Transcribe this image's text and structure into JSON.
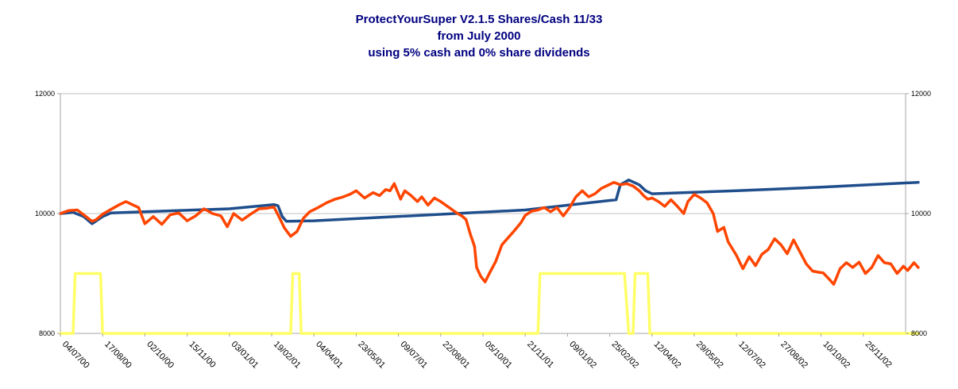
{
  "chart_data": {
    "type": "line",
    "title_lines": [
      "ProtectYourSuper V2.1.5 Shares/Cash 11/33",
      "from July 2000",
      "using 5% cash and 0% share dividends"
    ],
    "ylim": [
      8000,
      12000
    ],
    "y_ticks": [
      "8000",
      "10000",
      "12000"
    ],
    "y_ticks_right": [
      "8000",
      "10000",
      "12000"
    ],
    "grid": "horizontal",
    "x_tick_labels": [
      "04/07/00",
      "17/08/00",
      "02/10/00",
      "15/11/00",
      "03/01/01",
      "19/02/01",
      "04/04/01",
      "23/05/01",
      "09/07/01",
      "22/08/01",
      "05/10/01",
      "21/11/01",
      "09/01/02",
      "25/02/02",
      "12/04/02",
      "29/05/02",
      "12/07/02",
      "27/08/02",
      "10/10/02",
      "25/11/02"
    ],
    "series": [
      {
        "color": "#1f4e8c",
        "points": [
          [
            0,
            10000
          ],
          [
            0.3,
            10020
          ],
          [
            0.55,
            9950
          ],
          [
            0.75,
            9830
          ],
          [
            1.0,
            9950
          ],
          [
            1.2,
            10010
          ],
          [
            4.0,
            10080
          ],
          [
            5.05,
            10150
          ],
          [
            5.15,
            10130
          ],
          [
            5.25,
            9950
          ],
          [
            5.35,
            9870
          ],
          [
            6.0,
            9880
          ],
          [
            11.0,
            10060
          ],
          [
            13.15,
            10230
          ],
          [
            13.25,
            10480
          ],
          [
            13.45,
            10560
          ],
          [
            13.7,
            10480
          ],
          [
            13.85,
            10380
          ],
          [
            14.0,
            10330
          ],
          [
            16.0,
            10380
          ],
          [
            18.0,
            10440
          ],
          [
            20.3,
            10520
          ]
        ]
      },
      {
        "color": "#ff4500",
        "points": [
          [
            0,
            10000
          ],
          [
            0.2,
            10050
          ],
          [
            0.4,
            10060
          ],
          [
            0.55,
            9980
          ],
          [
            0.75,
            9870
          ],
          [
            0.85,
            9900
          ],
          [
            1.0,
            9990
          ],
          [
            1.2,
            10070
          ],
          [
            1.4,
            10150
          ],
          [
            1.55,
            10200
          ],
          [
            1.7,
            10150
          ],
          [
            1.85,
            10100
          ],
          [
            2.0,
            9830
          ],
          [
            2.2,
            9950
          ],
          [
            2.4,
            9820
          ],
          [
            2.6,
            9980
          ],
          [
            2.8,
            10010
          ],
          [
            3.0,
            9880
          ],
          [
            3.2,
            9960
          ],
          [
            3.4,
            10080
          ],
          [
            3.6,
            10000
          ],
          [
            3.8,
            9960
          ],
          [
            3.95,
            9780
          ],
          [
            4.1,
            10000
          ],
          [
            4.3,
            9890
          ],
          [
            4.5,
            9990
          ],
          [
            4.7,
            10080
          ],
          [
            4.9,
            10090
          ],
          [
            5.05,
            10110
          ],
          [
            5.15,
            9980
          ],
          [
            5.3,
            9760
          ],
          [
            5.45,
            9620
          ],
          [
            5.6,
            9700
          ],
          [
            5.75,
            9920
          ],
          [
            5.9,
            10030
          ],
          [
            6.1,
            10100
          ],
          [
            6.3,
            10180
          ],
          [
            6.5,
            10240
          ],
          [
            6.7,
            10280
          ],
          [
            6.85,
            10320
          ],
          [
            7.0,
            10380
          ],
          [
            7.2,
            10260
          ],
          [
            7.4,
            10350
          ],
          [
            7.55,
            10300
          ],
          [
            7.7,
            10400
          ],
          [
            7.8,
            10380
          ],
          [
            7.9,
            10500
          ],
          [
            8.05,
            10240
          ],
          [
            8.15,
            10380
          ],
          [
            8.3,
            10300
          ],
          [
            8.45,
            10200
          ],
          [
            8.55,
            10280
          ],
          [
            8.7,
            10140
          ],
          [
            8.85,
            10260
          ],
          [
            9.0,
            10200
          ],
          [
            9.2,
            10100
          ],
          [
            9.4,
            10000
          ],
          [
            9.5,
            9960
          ],
          [
            9.6,
            9900
          ],
          [
            9.7,
            9660
          ],
          [
            9.8,
            9450
          ],
          [
            9.85,
            9100
          ],
          [
            9.95,
            8950
          ],
          [
            10.05,
            8860
          ],
          [
            10.15,
            9000
          ],
          [
            10.3,
            9200
          ],
          [
            10.45,
            9480
          ],
          [
            10.6,
            9600
          ],
          [
            10.75,
            9720
          ],
          [
            10.9,
            9850
          ],
          [
            11.0,
            9970
          ],
          [
            11.15,
            10040
          ],
          [
            11.3,
            10060
          ],
          [
            11.45,
            10100
          ],
          [
            11.6,
            10030
          ],
          [
            11.75,
            10100
          ],
          [
            11.9,
            9960
          ],
          [
            12.05,
            10100
          ],
          [
            12.2,
            10280
          ],
          [
            12.35,
            10380
          ],
          [
            12.5,
            10280
          ],
          [
            12.65,
            10330
          ],
          [
            12.8,
            10420
          ],
          [
            12.95,
            10470
          ],
          [
            13.1,
            10520
          ],
          [
            13.25,
            10480
          ],
          [
            13.4,
            10500
          ],
          [
            13.55,
            10460
          ],
          [
            13.7,
            10380
          ],
          [
            13.8,
            10300
          ],
          [
            13.9,
            10240
          ],
          [
            14.0,
            10260
          ],
          [
            14.15,
            10200
          ],
          [
            14.3,
            10120
          ],
          [
            14.45,
            10230
          ],
          [
            14.6,
            10120
          ],
          [
            14.75,
            10000
          ],
          [
            14.85,
            10200
          ],
          [
            15.0,
            10320
          ],
          [
            15.15,
            10260
          ],
          [
            15.3,
            10180
          ],
          [
            15.45,
            10000
          ],
          [
            15.55,
            9700
          ],
          [
            15.7,
            9770
          ],
          [
            15.8,
            9530
          ],
          [
            16.0,
            9300
          ],
          [
            16.15,
            9080
          ],
          [
            16.3,
            9280
          ],
          [
            16.45,
            9130
          ],
          [
            16.6,
            9320
          ],
          [
            16.75,
            9400
          ],
          [
            16.9,
            9580
          ],
          [
            17.05,
            9480
          ],
          [
            17.2,
            9330
          ],
          [
            17.35,
            9560
          ],
          [
            17.5,
            9360
          ],
          [
            17.65,
            9160
          ],
          [
            17.8,
            9040
          ],
          [
            17.95,
            9020
          ],
          [
            18.05,
            9010
          ],
          [
            18.2,
            8900
          ],
          [
            18.3,
            8820
          ],
          [
            18.45,
            9080
          ],
          [
            18.6,
            9180
          ],
          [
            18.75,
            9100
          ],
          [
            18.9,
            9190
          ],
          [
            19.05,
            9000
          ],
          [
            19.2,
            9100
          ],
          [
            19.35,
            9300
          ],
          [
            19.5,
            9180
          ],
          [
            19.65,
            9160
          ],
          [
            19.8,
            9000
          ],
          [
            19.95,
            9120
          ],
          [
            20.05,
            9050
          ],
          [
            20.2,
            9180
          ],
          [
            20.3,
            9100
          ]
        ]
      },
      {
        "color": "#ffff66",
        "points": [
          [
            0,
            8000
          ],
          [
            0.3,
            8000
          ],
          [
            0.35,
            9000
          ],
          [
            0.95,
            9000
          ],
          [
            1.0,
            8000
          ],
          [
            5.45,
            8000
          ],
          [
            5.5,
            9000
          ],
          [
            5.65,
            9000
          ],
          [
            5.7,
            8000
          ],
          [
            11.3,
            8000
          ],
          [
            11.35,
            9000
          ],
          [
            13.35,
            9000
          ],
          [
            13.45,
            8000
          ],
          [
            13.55,
            8000
          ],
          [
            13.6,
            9000
          ],
          [
            13.9,
            9000
          ],
          [
            13.95,
            8000
          ],
          [
            20.3,
            8000
          ]
        ]
      }
    ]
  }
}
